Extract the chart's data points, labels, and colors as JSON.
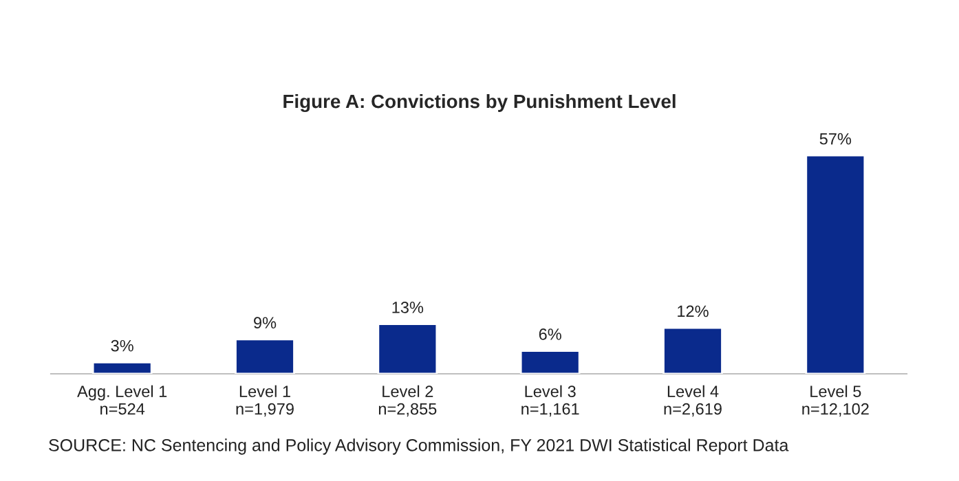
{
  "chart_data": {
    "type": "bar",
    "title": "Figure A: Convictions by Punishment Level",
    "categories": [
      "Agg. Level 1\nn=524",
      "Level 1\nn=1,979",
      "Level 2\nn=2,855",
      "Level 3\nn=1,161",
      "Level 4\nn=2,619",
      "Level 5\nn=12,102"
    ],
    "values": [
      3,
      9,
      13,
      6,
      12,
      57
    ],
    "value_labels": [
      "3%",
      "9%",
      "13%",
      "6%",
      "12%",
      "57%"
    ],
    "color": "#0a2a8c",
    "annotations": [
      "SOURCE: NC Sentencing and Policy Advisory Commission, FY 2021 DWI Statistical Report Data"
    ]
  }
}
